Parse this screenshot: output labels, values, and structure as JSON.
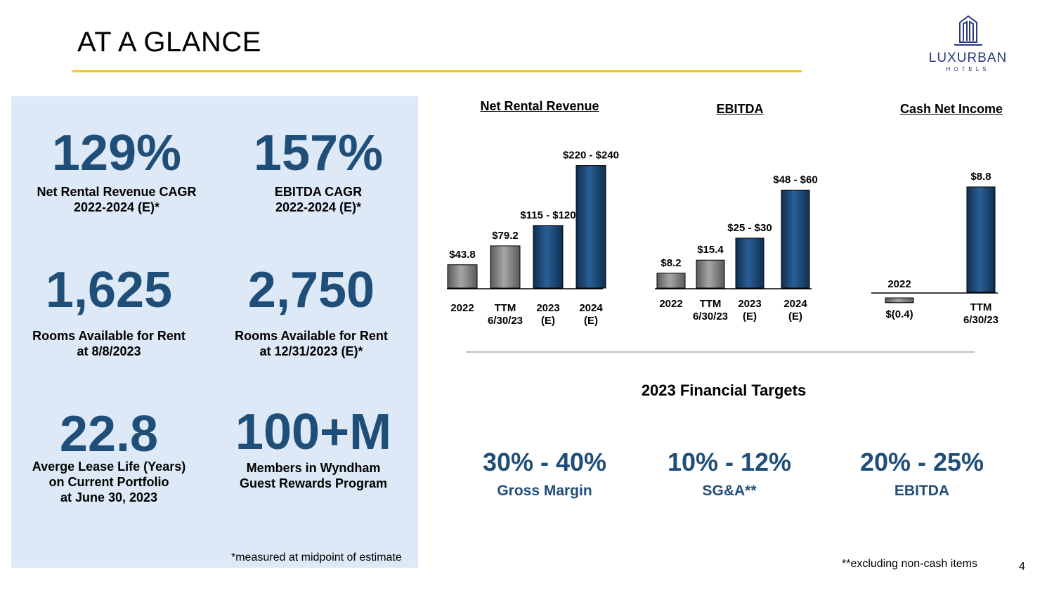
{
  "header": {
    "title": "AT A GLANCE"
  },
  "logo": {
    "name": "LUXURBAN",
    "sub": "HOTELS"
  },
  "stats": [
    {
      "value": "129%",
      "label_line1": "Net Rental Revenue CAGR",
      "label_line2": "2022-2024 (E)*",
      "label_line3": ""
    },
    {
      "value": "157%",
      "label_line1": "EBITDA CAGR",
      "label_line2": "2022-2024 (E)*",
      "label_line3": ""
    },
    {
      "value": "1,625",
      "label_line1": "Rooms Available for Rent",
      "label_line2": "at 8/8/2023",
      "label_line3": ""
    },
    {
      "value": "2,750",
      "label_line1": "Rooms Available for Rent",
      "label_line2": "at 12/31/2023 (E)*",
      "label_line3": ""
    },
    {
      "value": "22.8",
      "label_line1": "Averge Lease Life (Years)",
      "label_line2": "on Current Portfolio",
      "label_line3": "at June 30, 2023"
    },
    {
      "value": "100+M",
      "label_line1": "Members in Wyndham",
      "label_line2": "Guest Rewards Program",
      "label_line3": ""
    }
  ],
  "panel_footnote": "*measured at midpoint of estimate",
  "chart_data": [
    {
      "type": "bar",
      "title": "Net Rental Revenue",
      "categories": [
        [
          "2022"
        ],
        [
          "TTM",
          "6/30/23"
        ],
        [
          "2023",
          "(E)"
        ],
        [
          "2024",
          "(E)"
        ]
      ],
      "values": [
        43.8,
        79.2,
        117.5,
        230
      ],
      "value_labels": [
        "$43.8",
        "$79.2",
        "$115 - $120",
        "$220 - $240"
      ],
      "kinds": [
        "actual",
        "actual",
        "estimate",
        "estimate"
      ],
      "ylim": [
        0,
        240
      ]
    },
    {
      "type": "bar",
      "title": "EBITDA",
      "categories": [
        [
          "2022"
        ],
        [
          "TTM",
          "6/30/23"
        ],
        [
          "2023",
          "(E)"
        ],
        [
          "2024",
          "(E)"
        ]
      ],
      "values": [
        8.2,
        15.4,
        27.5,
        54
      ],
      "value_labels": [
        "$8.2",
        "$15.4",
        "$25 - $30",
        "$48 - $60"
      ],
      "kinds": [
        "actual",
        "actual",
        "estimate",
        "estimate"
      ],
      "ylim": [
        0,
        60
      ]
    },
    {
      "type": "bar",
      "title": "Cash Net Income",
      "categories": [
        [
          "2022"
        ],
        [
          "TTM",
          "6/30/23"
        ]
      ],
      "values": [
        -0.4,
        8.8
      ],
      "value_labels": [
        "$(0.4)",
        "$8.8"
      ],
      "kinds": [
        "actual",
        "estimate"
      ],
      "ylim": [
        -0.4,
        8.8
      ]
    }
  ],
  "targets": {
    "title": "2023 Financial Targets",
    "items": [
      {
        "value": "30% - 40%",
        "label": "Gross Margin"
      },
      {
        "value": "10% - 12%",
        "label": "SG&A**"
      },
      {
        "value": "20% - 25%",
        "label": "EBITDA"
      }
    ]
  },
  "footnote2": "**excluding non-cash items",
  "page_number": "4",
  "colors": {
    "actual": "#8c8c8c",
    "estimate": "#1f4e79",
    "rule": "#f2c811",
    "panel": "#dde9f6"
  }
}
